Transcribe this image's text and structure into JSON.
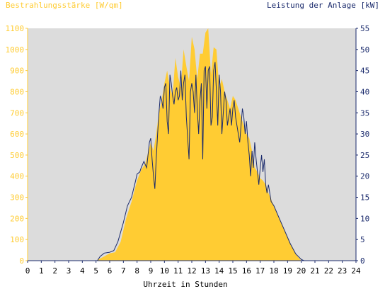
{
  "chart_data": {
    "type": "area",
    "title_left": "Bestrahlungsstärke [W/qm]",
    "title_right": "Leistung der Anlage [kW]",
    "xlabel": "Uhrzeit in Stunden",
    "xlim": [
      0,
      24
    ],
    "x_ticks": [
      "0",
      "1",
      "2",
      "3",
      "4",
      "5",
      "6",
      "7",
      "8",
      "9",
      "10",
      "11",
      "12",
      "13",
      "14",
      "15",
      "16",
      "17",
      "18",
      "19",
      "20",
      "21",
      "22",
      "23",
      "24"
    ],
    "y_left": {
      "range": [
        0,
        1100
      ],
      "ticks": [
        "0",
        "100",
        "200",
        "300",
        "400",
        "500",
        "600",
        "700",
        "800",
        "900",
        "1000",
        "1100"
      ]
    },
    "y_right": {
      "range": [
        0,
        55
      ],
      "ticks": [
        "0",
        "5",
        "10",
        "15",
        "20",
        "25",
        "30",
        "35",
        "40",
        "45",
        "50",
        "55"
      ]
    },
    "grid": false,
    "colors": {
      "plot_background": "#dcdcdc",
      "irradiance_fill": "#ffcc33",
      "power_line": "#1a2a6c",
      "left_axis_text": "#ffcc33",
      "right_axis_text": "#1a2a6c",
      "axis_line_left": "#ffcc33",
      "axis_line_right": "#1a2a6c"
    },
    "series": [
      {
        "kind": "area",
        "axis": "left",
        "x": [
          0,
          5.0,
          5.3,
          5.6,
          6.0,
          6.4,
          6.8,
          7.2,
          7.6,
          8.0,
          8.3,
          8.6,
          9.0,
          9.2,
          9.4,
          9.6,
          9.8,
          10.0,
          10.2,
          10.4,
          10.6,
          10.8,
          11.0,
          11.2,
          11.4,
          11.6,
          11.8,
          12.0,
          12.2,
          12.4,
          12.6,
          12.8,
          13.0,
          13.2,
          13.4,
          13.6,
          13.8,
          14.0,
          14.2,
          14.4,
          14.6,
          14.8,
          15.0,
          15.2,
          15.4,
          15.6,
          15.8,
          16.0,
          16.2,
          16.4,
          16.6,
          16.8,
          17.0,
          17.2,
          17.4,
          17.6,
          17.8,
          18.0,
          18.4,
          18.8,
          19.2,
          19.6,
          20.0,
          20.2,
          24
        ],
        "values": [
          0,
          0,
          10,
          20,
          35,
          40,
          90,
          200,
          280,
          380,
          430,
          460,
          560,
          520,
          600,
          700,
          760,
          840,
          900,
          820,
          780,
          960,
          870,
          820,
          1000,
          920,
          850,
          1060,
          1000,
          860,
          980,
          980,
          1080,
          1100,
          880,
          1010,
          1000,
          820,
          860,
          800,
          760,
          720,
          780,
          760,
          720,
          680,
          640,
          600,
          580,
          520,
          440,
          420,
          390,
          380,
          360,
          320,
          290,
          260,
          200,
          140,
          80,
          30,
          0,
          0,
          0
        ]
      },
      {
        "kind": "line",
        "axis": "right",
        "x": [
          0,
          5.1,
          5.3,
          5.6,
          6.0,
          6.3,
          6.6,
          7.0,
          7.3,
          7.6,
          7.9,
          8.0,
          8.2,
          8.3,
          8.5,
          8.7,
          8.9,
          9.0,
          9.1,
          9.2,
          9.3,
          9.4,
          9.5,
          9.6,
          9.7,
          9.8,
          9.9,
          10.0,
          10.1,
          10.2,
          10.3,
          10.4,
          10.5,
          10.6,
          10.7,
          10.8,
          10.9,
          11.0,
          11.1,
          11.2,
          11.3,
          11.4,
          11.5,
          11.6,
          11.7,
          11.8,
          11.9,
          12.0,
          12.1,
          12.2,
          12.3,
          12.4,
          12.5,
          12.6,
          12.7,
          12.8,
          12.9,
          13.0,
          13.1,
          13.2,
          13.3,
          13.4,
          13.5,
          13.6,
          13.7,
          13.8,
          13.9,
          14.0,
          14.1,
          14.2,
          14.3,
          14.4,
          14.5,
          14.6,
          14.7,
          14.8,
          14.9,
          15.0,
          15.1,
          15.2,
          15.3,
          15.4,
          15.5,
          15.6,
          15.7,
          15.8,
          15.9,
          16.0,
          16.1,
          16.2,
          16.3,
          16.4,
          16.5,
          16.6,
          16.7,
          16.8,
          16.9,
          17.0,
          17.1,
          17.2,
          17.3,
          17.4,
          17.5,
          17.6,
          17.8,
          18.0,
          18.4,
          18.8,
          19.2,
          19.6,
          20.0,
          20.2,
          24
        ],
        "values": [
          0,
          0,
          1,
          1.8,
          2,
          2.4,
          4.5,
          9,
          13,
          15,
          19,
          20.5,
          21,
          22,
          23.5,
          22,
          28,
          29,
          24,
          20,
          17,
          24,
          30,
          35,
          39,
          38,
          36,
          41,
          42,
          33,
          30,
          44,
          42,
          39,
          37,
          40,
          41,
          38,
          39,
          45,
          38,
          42,
          44,
          34,
          29,
          24,
          40,
          42,
          40,
          35,
          44,
          36,
          30,
          38,
          42,
          24,
          45,
          46,
          36,
          45,
          46,
          32,
          34,
          45,
          47,
          40,
          32,
          44,
          40,
          30,
          35,
          40,
          38,
          32,
          34,
          36,
          32,
          36,
          38,
          34,
          32,
          30,
          28,
          32,
          36,
          34,
          30,
          33,
          28,
          25,
          20,
          26,
          22,
          28,
          24,
          21,
          18,
          22,
          25,
          21,
          24,
          18,
          16,
          18,
          14,
          13,
          10,
          7,
          4,
          1.6,
          0.3,
          0,
          0
        ]
      }
    ]
  }
}
